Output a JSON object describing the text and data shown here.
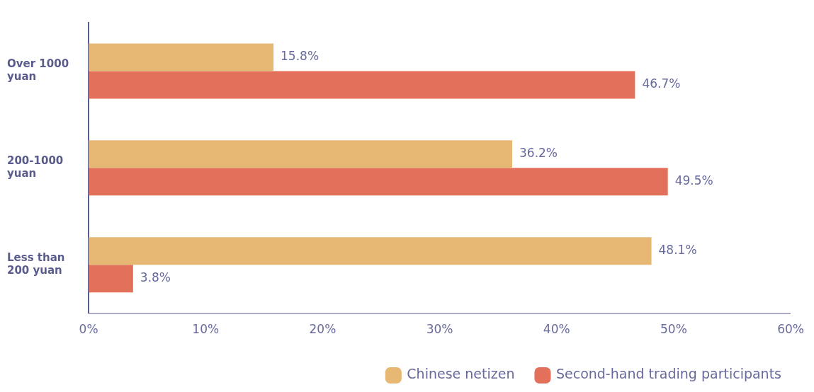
{
  "chart_data": {
    "type": "bar",
    "orientation": "horizontal",
    "categories": [
      "Over 1000 yuan",
      "200-1000 yuan",
      "Less than 200 yuan"
    ],
    "series": [
      {
        "name": "Chinese netizen",
        "color": "#e7b774",
        "values": [
          15.8,
          36.2,
          48.1
        ],
        "value_labels": [
          "15.8%",
          "36.2%",
          "48.1%"
        ]
      },
      {
        "name": "Second-hand trading participants",
        "color": "#e2705b",
        "values": [
          46.7,
          49.5,
          3.8
        ],
        "value_labels": [
          "46.7%",
          "49.5%",
          "3.8%"
        ]
      }
    ],
    "xlim": [
      0,
      60
    ],
    "xticks": [
      {
        "value": 0,
        "label": "0%"
      },
      {
        "value": 10,
        "label": "10%"
      },
      {
        "value": 20,
        "label": "20%"
      },
      {
        "value": 30,
        "label": "30%"
      },
      {
        "value": 40,
        "label": "40%"
      },
      {
        "value": 50,
        "label": "50%"
      },
      {
        "value": 60,
        "label": "60%"
      }
    ],
    "grid": false,
    "legend": "bottom right"
  }
}
